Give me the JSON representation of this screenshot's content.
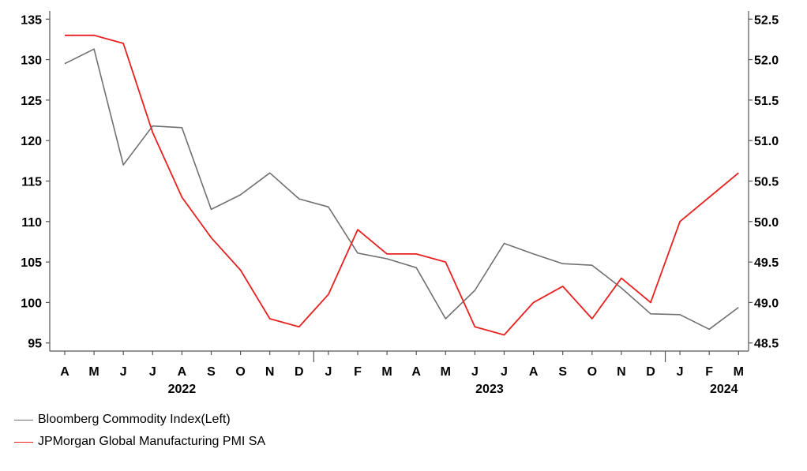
{
  "chart_data": {
    "type": "line",
    "categories": [
      "A",
      "M",
      "J",
      "J",
      "A",
      "S",
      "O",
      "N",
      "D",
      "J",
      "F",
      "M",
      "A",
      "M",
      "J",
      "J",
      "A",
      "S",
      "O",
      "N",
      "D",
      "J",
      "F",
      "M"
    ],
    "year_labels": [
      {
        "label": "2022",
        "index": 4
      },
      {
        "label": "2023",
        "index": 14.5
      },
      {
        "label": "2024",
        "index": 22.5
      }
    ],
    "year_dividers": [
      8.5,
      20.5
    ],
    "series": [
      {
        "name": "Bloomberg Commodity Index(Left)",
        "axis": "left",
        "color": "#707070",
        "values": [
          129.5,
          131.3,
          117.0,
          121.8,
          121.6,
          111.5,
          113.3,
          116.0,
          112.8,
          111.8,
          106.1,
          105.4,
          104.3,
          98.0,
          101.5,
          107.3,
          106.0,
          104.8,
          104.6,
          101.8,
          98.6,
          98.5,
          96.7,
          99.4
        ]
      },
      {
        "name": "JPMorgan Global Manufacturing PMI SA",
        "axis": "right",
        "color": "#e8201f",
        "values": [
          52.3,
          52.3,
          52.2,
          51.1,
          50.3,
          49.8,
          49.4,
          48.8,
          48.7,
          49.1,
          49.9,
          49.6,
          49.6,
          49.5,
          48.7,
          48.6,
          49.0,
          49.2,
          48.8,
          49.3,
          49.0,
          50.0,
          50.3,
          50.6
        ]
      }
    ],
    "y_left": {
      "min": 94,
      "max": 136,
      "ticks": [
        "135",
        "130",
        "125",
        "120",
        "115",
        "110",
        "105",
        "100",
        "95"
      ],
      "tick_values": [
        135,
        130,
        125,
        120,
        115,
        110,
        105,
        100,
        95
      ]
    },
    "y_right": {
      "min": 48.4,
      "max": 52.6,
      "ticks": [
        "52.5",
        "52.0",
        "51.5",
        "51.0",
        "50.5",
        "50.0",
        "49.5",
        "49.0",
        "48.5"
      ],
      "tick_values": [
        52.5,
        52.0,
        51.5,
        51.0,
        50.5,
        50.0,
        49.5,
        49.0,
        48.5
      ]
    },
    "grid": false,
    "legend_position": "bottom-left"
  },
  "legend": {
    "items": [
      {
        "label": "Bloomberg Commodity Index(Left)",
        "color": "#707070"
      },
      {
        "label": "JPMorgan Global Manufacturing PMI SA",
        "color": "#e8201f"
      }
    ]
  }
}
